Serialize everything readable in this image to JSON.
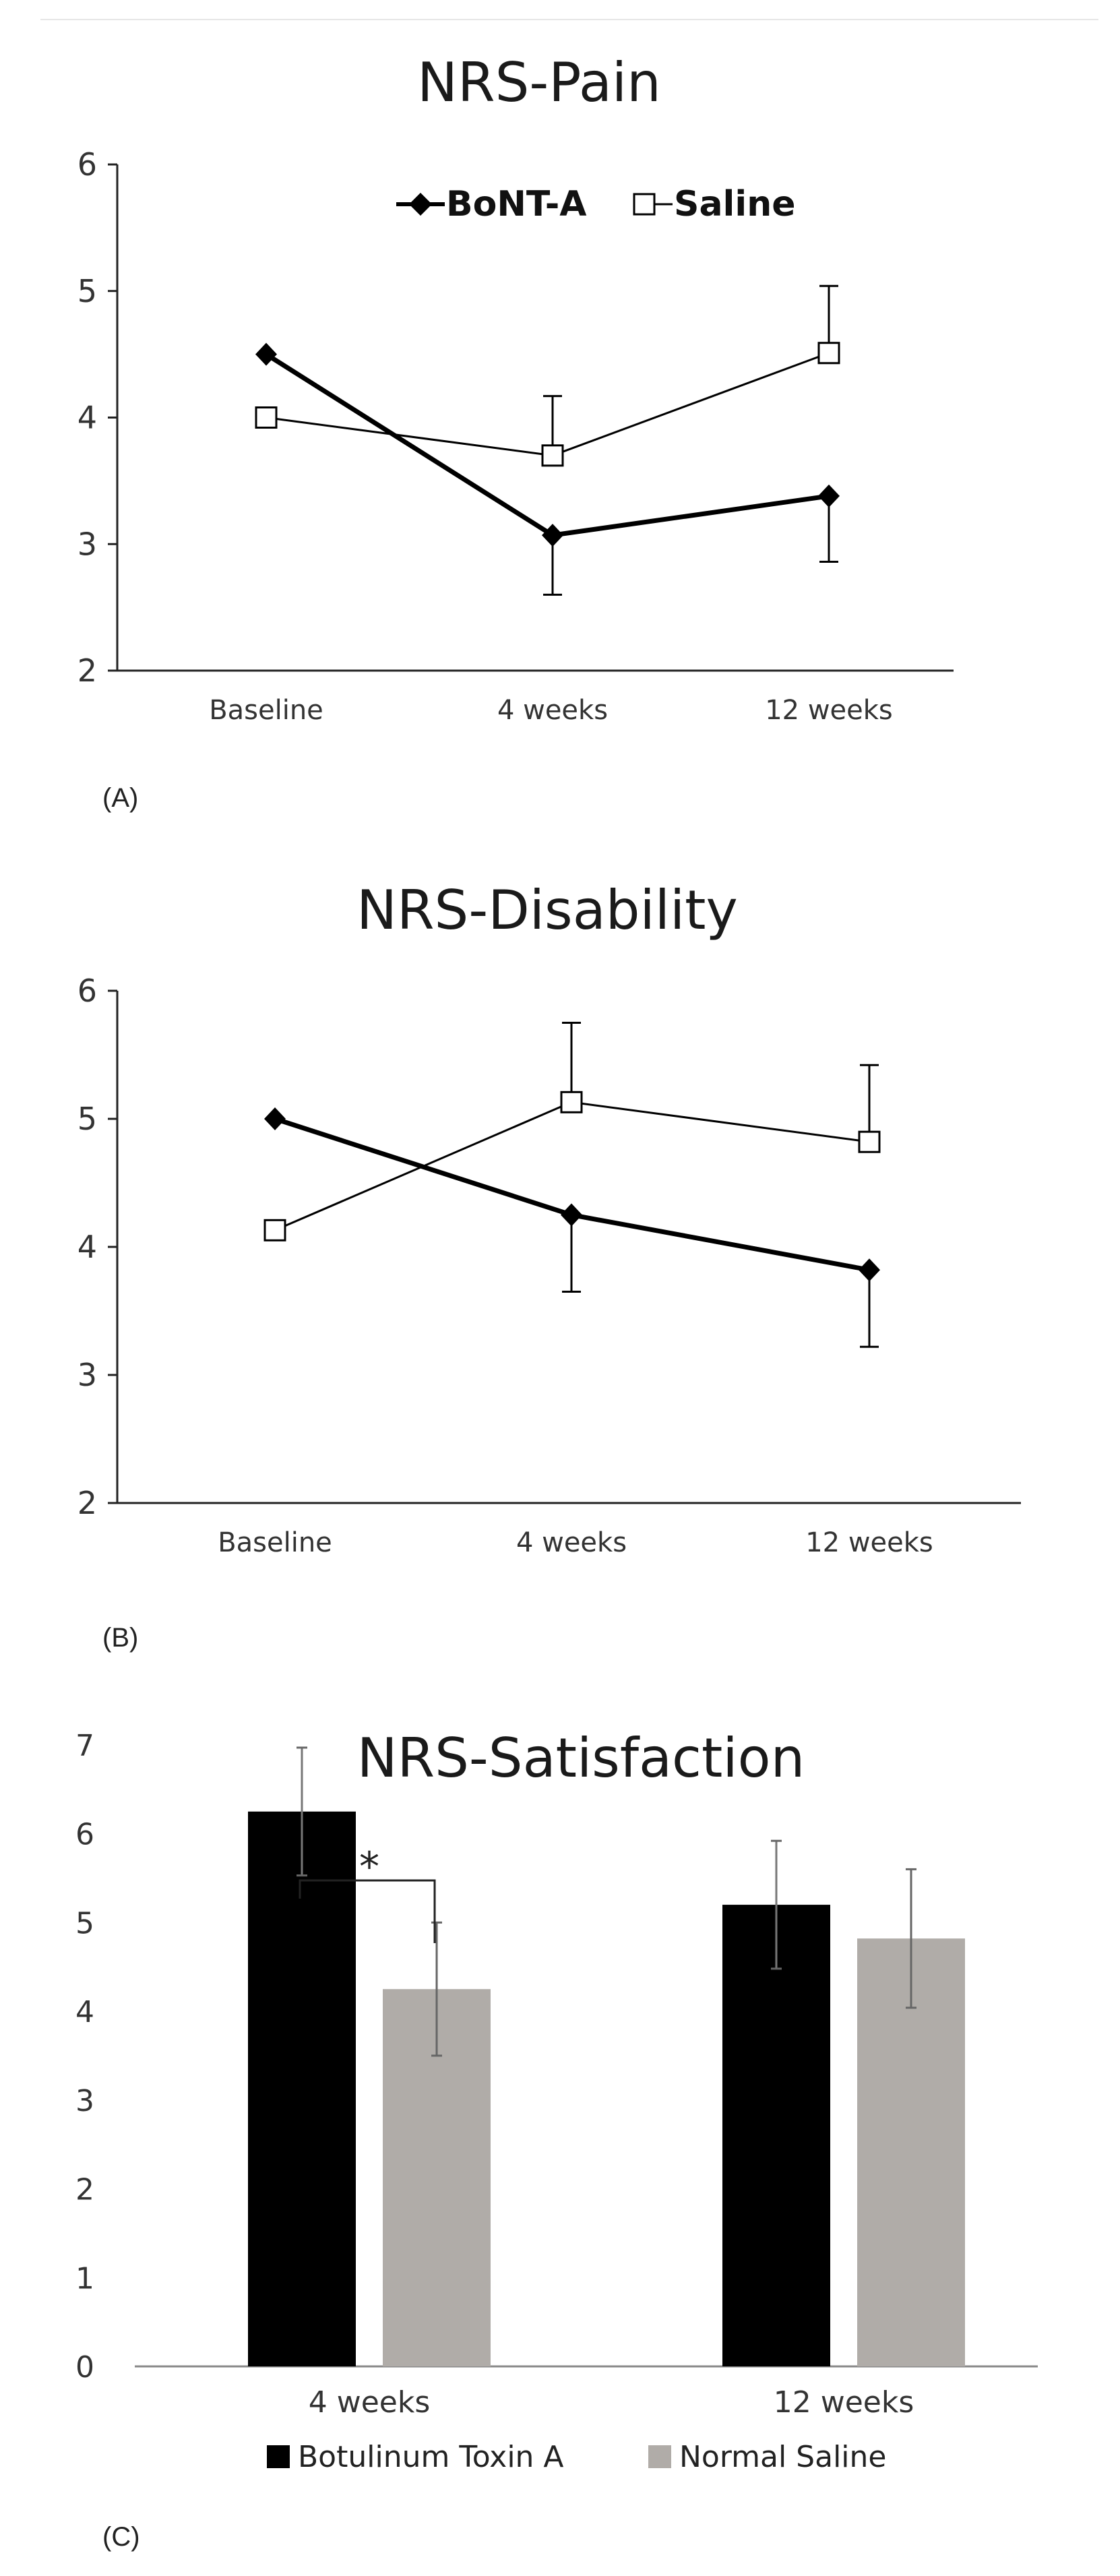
{
  "colors": {
    "bont": "#000000",
    "saline_marker_fill": "#ffffff",
    "saline_bar": "#b0aca8",
    "axis": "#222222"
  },
  "chart_data": [
    {
      "type": "line",
      "panel_label": "(A)",
      "title": "NRS-Pain",
      "categories": [
        "Baseline",
        "4 weeks",
        "12 weeks"
      ],
      "ylim": [
        2,
        6
      ],
      "yticks": [
        2,
        3,
        4,
        5,
        6
      ],
      "grid": false,
      "legend_position": "top-center",
      "series": [
        {
          "name": "BoNT-A",
          "marker": "diamond",
          "values": [
            4.5,
            3.07,
            3.38
          ],
          "errors_lower": [
            0,
            0.47,
            0.52
          ],
          "errors_upper": [
            0,
            0,
            0
          ]
        },
        {
          "name": "Saline",
          "marker": "square-open",
          "values": [
            4.0,
            3.7,
            4.51
          ],
          "errors_lower": [
            0,
            0,
            0
          ],
          "errors_upper": [
            0,
            0.47,
            0.53
          ]
        }
      ]
    },
    {
      "type": "line",
      "panel_label": "(B)",
      "title": "NRS-Disability",
      "categories": [
        "Baseline",
        "4 weeks",
        "12 weeks"
      ],
      "ylim": [
        2,
        6
      ],
      "yticks": [
        2,
        3,
        4,
        5,
        6
      ],
      "grid": false,
      "series": [
        {
          "name": "BoNT-A",
          "marker": "diamond",
          "values": [
            5.0,
            4.25,
            3.82
          ],
          "errors_lower": [
            0,
            0.6,
            0.6
          ],
          "errors_upper": [
            0,
            0,
            0
          ]
        },
        {
          "name": "Saline",
          "marker": "square-open",
          "values": [
            4.13,
            5.13,
            4.82
          ],
          "errors_lower": [
            0,
            0,
            0
          ],
          "errors_upper": [
            0,
            0.62,
            0.6
          ]
        }
      ]
    },
    {
      "type": "bar",
      "panel_label": "(C)",
      "title": "NRS-Satisfaction",
      "categories": [
        "4 weeks",
        "12 weeks"
      ],
      "ylim": [
        0,
        7
      ],
      "yticks": [
        0,
        1,
        2,
        3,
        4,
        5,
        6,
        7
      ],
      "grid": false,
      "legend_position": "bottom-center",
      "significance": {
        "label": "*",
        "category": "4 weeks"
      },
      "series": [
        {
          "name": "Botulinum Toxin A",
          "values": [
            6.25,
            5.2
          ],
          "errors": [
            0.72,
            0.72
          ]
        },
        {
          "name": "Normal Saline",
          "values": [
            4.25,
            4.82
          ],
          "errors": [
            0.75,
            0.78
          ]
        }
      ]
    }
  ]
}
